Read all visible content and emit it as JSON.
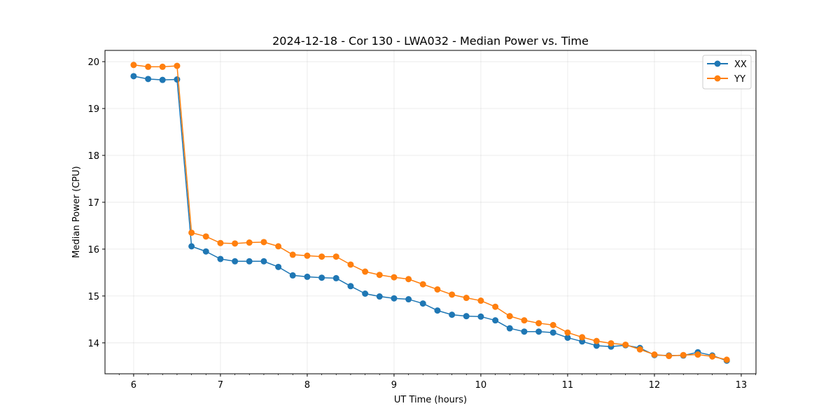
{
  "chart_data": {
    "type": "line",
    "title": "2024-12-18 - Cor 130 - LWA032 - Median Power vs. Time",
    "xlabel": "UT Time (hours)",
    "ylabel": "Median Power (CPU)",
    "xlim": [
      5.67,
      13.17
    ],
    "ylim": [
      13.34,
      20.24
    ],
    "xticks": [
      6,
      7,
      8,
      9,
      10,
      11,
      12,
      13
    ],
    "yticks": [
      14,
      15,
      16,
      17,
      18,
      19,
      20
    ],
    "grid": true,
    "legend_position": "top-right",
    "x": [
      6.0,
      6.167,
      6.333,
      6.5,
      6.667,
      6.833,
      7.0,
      7.167,
      7.333,
      7.5,
      7.667,
      7.833,
      8.0,
      8.167,
      8.333,
      8.5,
      8.667,
      8.833,
      9.0,
      9.167,
      9.333,
      9.5,
      9.667,
      9.833,
      10.0,
      10.167,
      10.333,
      10.5,
      10.667,
      10.833,
      11.0,
      11.167,
      11.333,
      11.5,
      11.667,
      11.833,
      12.0,
      12.167,
      12.333,
      12.5,
      12.667,
      12.833
    ],
    "series": [
      {
        "name": "XX",
        "color": "#1f77b4",
        "values": [
          19.69,
          19.63,
          19.61,
          19.62,
          16.06,
          15.95,
          15.79,
          15.74,
          15.74,
          15.74,
          15.62,
          15.44,
          15.41,
          15.39,
          15.38,
          15.21,
          15.05,
          14.99,
          14.95,
          14.93,
          14.84,
          14.69,
          14.6,
          14.57,
          14.56,
          14.48,
          14.31,
          14.24,
          14.24,
          14.22,
          14.11,
          14.03,
          13.94,
          13.92,
          13.95,
          13.89,
          13.74,
          13.73,
          13.73,
          13.8,
          13.73,
          13.62
        ]
      },
      {
        "name": "YY",
        "color": "#ff7f0e",
        "values": [
          19.93,
          19.89,
          19.89,
          19.91,
          16.35,
          16.27,
          16.13,
          16.12,
          16.14,
          16.15,
          16.06,
          15.88,
          15.86,
          15.84,
          15.84,
          15.67,
          15.52,
          15.45,
          15.4,
          15.36,
          15.25,
          15.14,
          15.03,
          14.96,
          14.9,
          14.77,
          14.57,
          14.48,
          14.42,
          14.38,
          14.22,
          14.12,
          14.04,
          13.99,
          13.96,
          13.86,
          13.75,
          13.72,
          13.74,
          13.75,
          13.71,
          13.64
        ]
      }
    ]
  }
}
